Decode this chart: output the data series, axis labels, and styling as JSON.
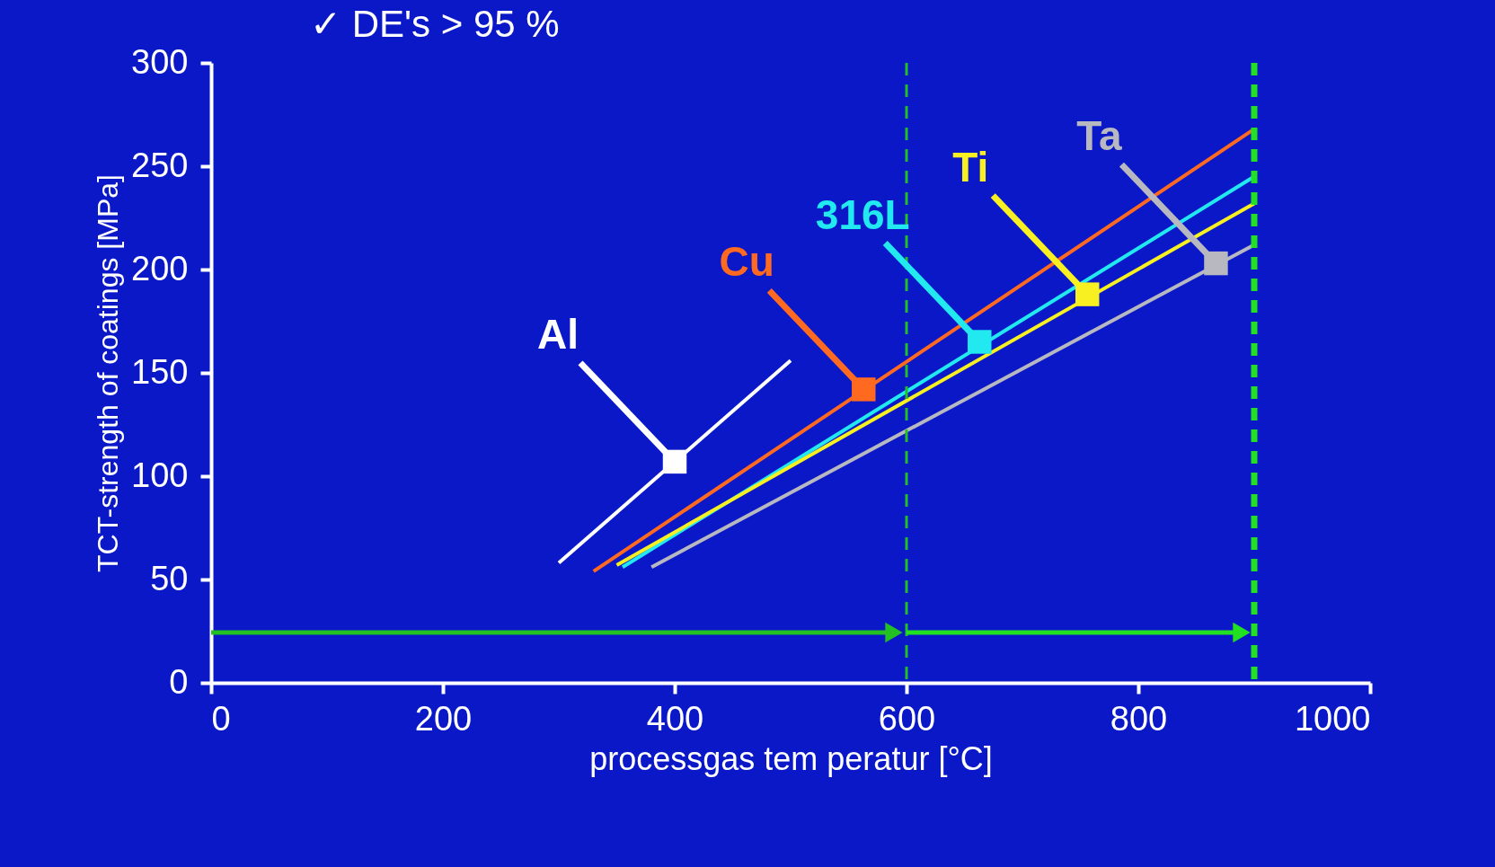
{
  "chart_data": {
    "type": "line",
    "xlabel": "processgas tem peratur [°C]",
    "ylabel": "TCT-strength of coatings [MPa]",
    "xlim": [
      0,
      1000
    ],
    "ylim": [
      0,
      300
    ],
    "xticks": [
      0,
      200,
      400,
      600,
      800,
      1000
    ],
    "yticks": [
      0,
      50,
      100,
      150,
      200,
      250,
      300
    ],
    "grid": false,
    "series": [
      {
        "color": "#ffffff",
        "x": [
          300,
          500
        ],
        "values": [
          58,
          156
        ]
      },
      {
        "color": "#ff6a20",
        "x": [
          330,
          900
        ],
        "values": [
          54,
          268
        ]
      },
      {
        "color": "#22e8f0",
        "x": [
          355,
          900
        ],
        "values": [
          56,
          245
        ]
      },
      {
        "color": "#f8f020",
        "x": [
          350,
          900
        ],
        "values": [
          57,
          232
        ]
      },
      {
        "color": "#b8b8c0",
        "x": [
          380,
          900
        ],
        "values": [
          56,
          212
        ]
      }
    ],
    "annotations": [
      "✓  DE's > 95 %",
      {
        "text": "Al",
        "x": 400,
        "y": 107
      },
      {
        "text": "Cu",
        "x": 563,
        "y": 142
      },
      {
        "text": "316L",
        "x": 663,
        "y": 165
      },
      {
        "text": "Ti",
        "x": 756,
        "y": 188
      },
      {
        "text": "Ta",
        "x": 867,
        "y": 203
      }
    ],
    "ref_lines": [
      {
        "axis": "x",
        "value": 600,
        "color": "#22c022",
        "line_style": "dashed"
      },
      {
        "axis": "x",
        "value": 900,
        "color": "#22e022",
        "line_style": "dashed"
      }
    ]
  }
}
